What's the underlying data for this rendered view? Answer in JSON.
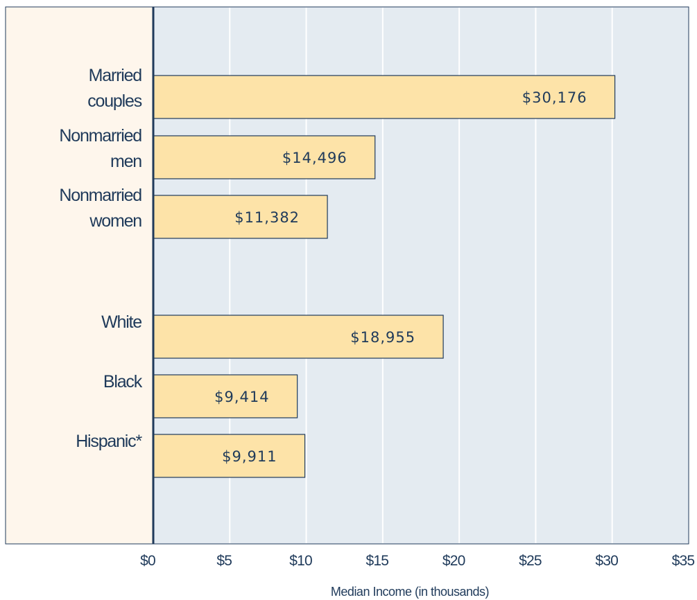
{
  "chart_data": {
    "type": "bar",
    "orientation": "horizontal",
    "categories": [
      [
        "Married",
        "couples"
      ],
      [
        "Nonmarried",
        "men"
      ],
      [
        "Nonmarried",
        "women"
      ],
      [
        "White"
      ],
      [
        "Black"
      ],
      [
        "Hispanic*"
      ]
    ],
    "values": [
      30.176,
      14.496,
      11.382,
      18.955,
      9.414,
      9.911
    ],
    "data_labels": [
      "$30,176",
      "$14,496",
      "$11,382",
      "$18,955",
      "$9,414",
      "$9,911"
    ],
    "x_ticks": [
      "$0",
      "$5",
      "$10",
      "$15",
      "$20",
      "$25",
      "$30",
      "$35"
    ],
    "xlim": [
      0,
      35
    ],
    "xlabel": "Median Income (in thousands)",
    "title": "",
    "grid": "vertical",
    "colors": {
      "bar_fill": "#fde3a8",
      "bar_stroke": "#1f3a5a",
      "plot_bg": "#e4ebf1",
      "label_panel_bg": "#fef6ec",
      "frame": "#1f3a5a",
      "grid": "#ffffff"
    }
  }
}
